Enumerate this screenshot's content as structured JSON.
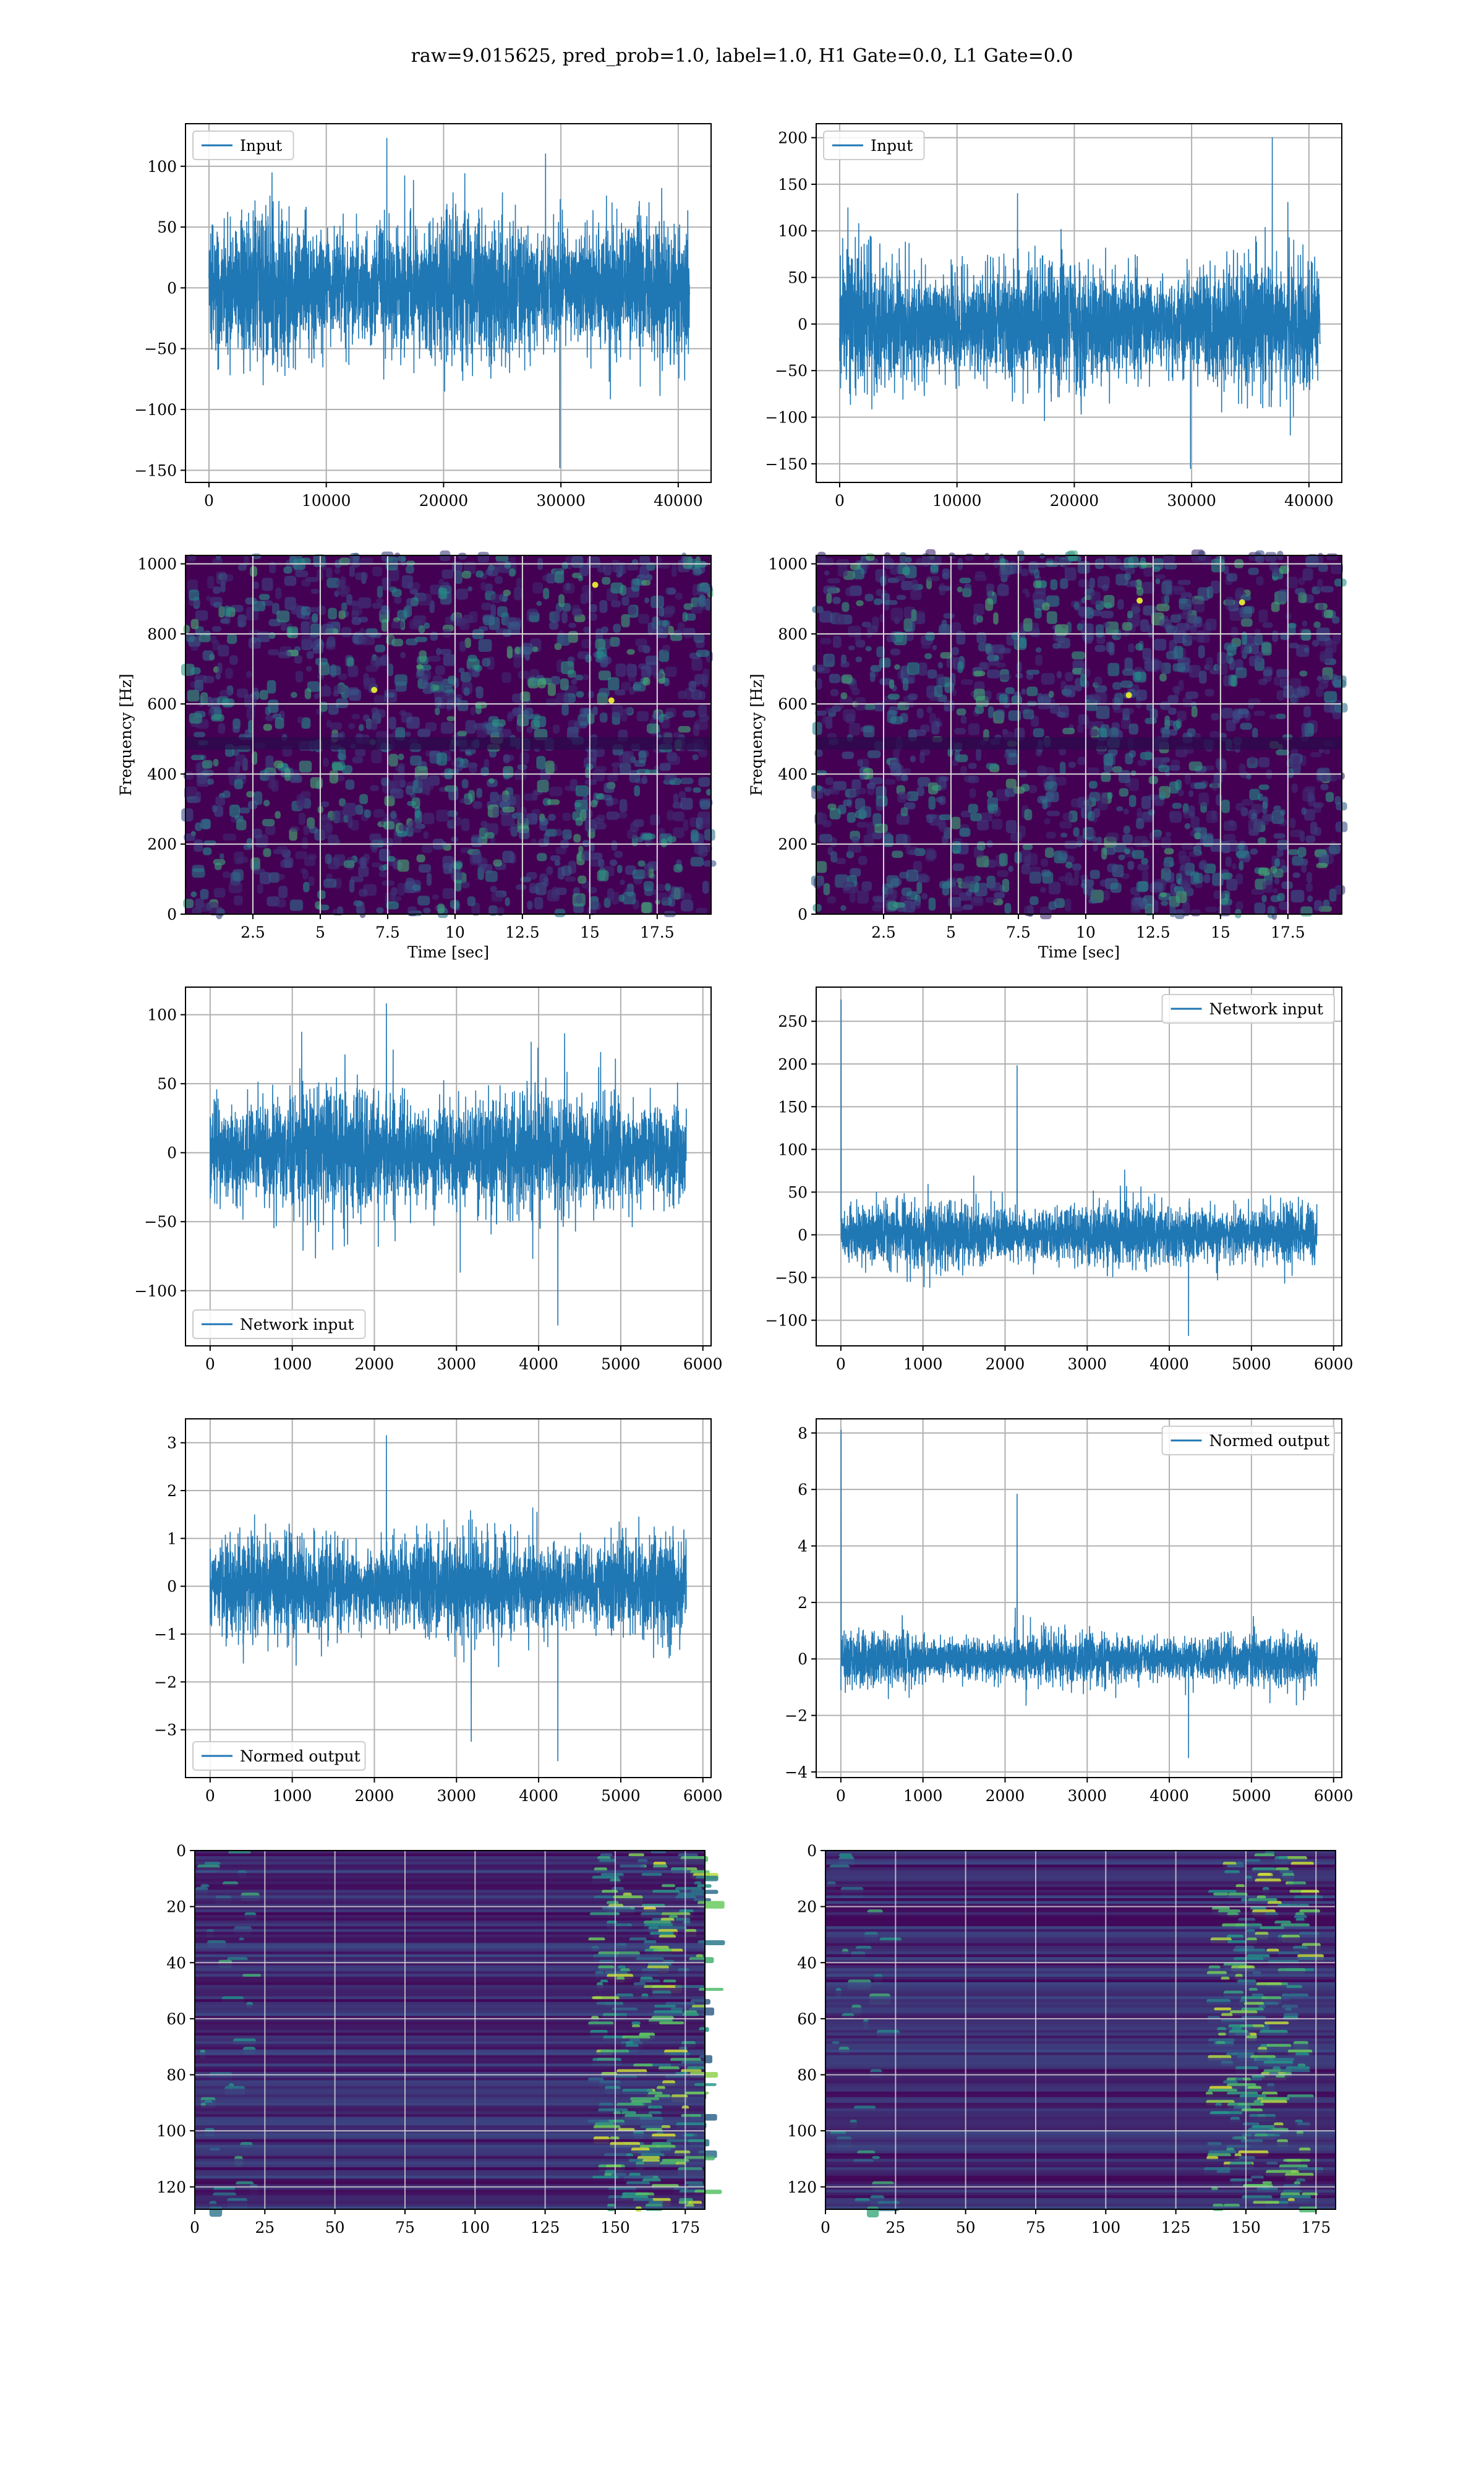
{
  "figure": {
    "title": "raw=9.015625, pred_prob=1.0, label=1.0, H1 Gate=0.0, L1 Gate=0.0"
  },
  "colors": {
    "line": "#1f77b4",
    "grid": "#b0b0b0",
    "viridis_dark": "#440154",
    "viridis_mid": "#21918c",
    "viridis_bright": "#fde725"
  },
  "chart_data": [
    {
      "type": "line",
      "legend": "Input",
      "legend_loc": "upper left",
      "xlim": [
        -2000,
        42800
      ],
      "ylim": [
        -160,
        135
      ],
      "xticks": [
        0,
        10000,
        20000,
        30000,
        40000
      ],
      "yticks": [
        -150,
        -100,
        -50,
        0,
        50,
        100
      ],
      "n_points": 40960,
      "noise_band": [
        -72,
        72
      ],
      "spikes_max": [
        123,
        -148
      ],
      "xlabel": "",
      "ylabel": "",
      "grid": true
    },
    {
      "type": "line",
      "legend": "Input",
      "legend_loc": "upper left",
      "xlim": [
        -2000,
        42800
      ],
      "ylim": [
        -170,
        215
      ],
      "xticks": [
        0,
        10000,
        20000,
        30000,
        40000
      ],
      "yticks": [
        -150,
        -100,
        -50,
        0,
        50,
        100,
        150,
        200
      ],
      "n_points": 40960,
      "noise_band": [
        -85,
        85
      ],
      "spikes_max": [
        200,
        -155
      ],
      "xlabel": "",
      "ylabel": "",
      "grid": true
    },
    {
      "type": "heatmap",
      "colormap": "viridis",
      "xlim": [
        0,
        19.5
      ],
      "ylim": [
        0,
        1024
      ],
      "xticks": [
        2.5,
        5.0,
        7.5,
        10.0,
        12.5,
        15.0,
        17.5
      ],
      "yticks": [
        0,
        200,
        400,
        600,
        800,
        1000
      ],
      "xlabel": "Time [sec]",
      "ylabel": "Frequency [Hz]",
      "grid": true,
      "bright_spots": [
        [
          15.8,
          610
        ],
        [
          7.0,
          640
        ],
        [
          15.2,
          940
        ]
      ]
    },
    {
      "type": "heatmap",
      "colormap": "viridis",
      "xlim": [
        0,
        19.5
      ],
      "ylim": [
        0,
        1024
      ],
      "xticks": [
        2.5,
        5.0,
        7.5,
        10.0,
        12.5,
        15.0,
        17.5
      ],
      "yticks": [
        0,
        200,
        400,
        600,
        800,
        1000
      ],
      "xlabel": "Time [sec]",
      "ylabel": "Frequency [Hz]",
      "grid": true,
      "bright_spots": [
        [
          11.6,
          625
        ],
        [
          12.0,
          895
        ],
        [
          15.8,
          890
        ]
      ]
    },
    {
      "type": "line",
      "legend": "Network input",
      "legend_loc": "lower left",
      "xlim": [
        -300,
        6100
      ],
      "ylim": [
        -140,
        120
      ],
      "xticks": [
        0,
        1000,
        2000,
        3000,
        4000,
        5000,
        6000
      ],
      "yticks": [
        -100,
        -50,
        0,
        50,
        100
      ],
      "n_points": 5800,
      "noise_band": [
        -55,
        55
      ],
      "spikes_max": [
        108,
        -125
      ],
      "xlabel": "",
      "ylabel": "",
      "grid": true
    },
    {
      "type": "line",
      "legend": "Network input",
      "legend_loc": "upper right",
      "xlim": [
        -300,
        6100
      ],
      "ylim": [
        -130,
        290
      ],
      "xticks": [
        0,
        1000,
        2000,
        3000,
        4000,
        5000,
        6000
      ],
      "yticks": [
        -100,
        -50,
        0,
        50,
        100,
        150,
        200,
        250
      ],
      "n_points": 5800,
      "noise_band": [
        -45,
        45
      ],
      "spikes_max": [
        275,
        -118
      ],
      "xlabel": "",
      "ylabel": "",
      "grid": true
    },
    {
      "type": "line",
      "legend": "Normed output",
      "legend_loc": "lower left",
      "xlim": [
        -300,
        6100
      ],
      "ylim": [
        -4.0,
        3.5
      ],
      "xticks": [
        0,
        1000,
        2000,
        3000,
        4000,
        5000,
        6000
      ],
      "yticks": [
        -3,
        -2,
        -1,
        0,
        1,
        2,
        3
      ],
      "n_points": 5800,
      "noise_band": [
        -1.3,
        1.3
      ],
      "spikes_max": [
        3.15,
        -3.65
      ],
      "xlabel": "",
      "ylabel": "",
      "grid": true
    },
    {
      "type": "line",
      "legend": "Normed output",
      "legend_loc": "upper right",
      "xlim": [
        -300,
        6100
      ],
      "ylim": [
        -4.2,
        8.5
      ],
      "xticks": [
        0,
        1000,
        2000,
        3000,
        4000,
        5000,
        6000
      ],
      "yticks": [
        -4,
        -2,
        0,
        2,
        4,
        6,
        8
      ],
      "n_points": 5800,
      "noise_band": [
        -1.1,
        1.1
      ],
      "spikes_max": [
        8.1,
        -3.5
      ],
      "xlabel": "",
      "ylabel": "",
      "grid": true
    },
    {
      "type": "heatmap",
      "colormap": "viridis",
      "xlim": [
        0,
        182
      ],
      "ylim": [
        128,
        0
      ],
      "xticks": [
        0,
        25,
        50,
        75,
        100,
        125,
        150,
        175
      ],
      "yticks": [
        0,
        20,
        40,
        60,
        80,
        100,
        120
      ],
      "rows": 128,
      "cols": 182,
      "bright_region": "right edge",
      "grid": true
    },
    {
      "type": "heatmap",
      "colormap": "viridis",
      "xlim": [
        0,
        182
      ],
      "ylim": [
        128,
        0
      ],
      "xticks": [
        0,
        25,
        50,
        75,
        100,
        125,
        150,
        175
      ],
      "yticks": [
        0,
        20,
        40,
        60,
        80,
        100,
        120
      ],
      "rows": 128,
      "cols": 182,
      "bright_region": "columns 140-165",
      "grid": true
    }
  ]
}
